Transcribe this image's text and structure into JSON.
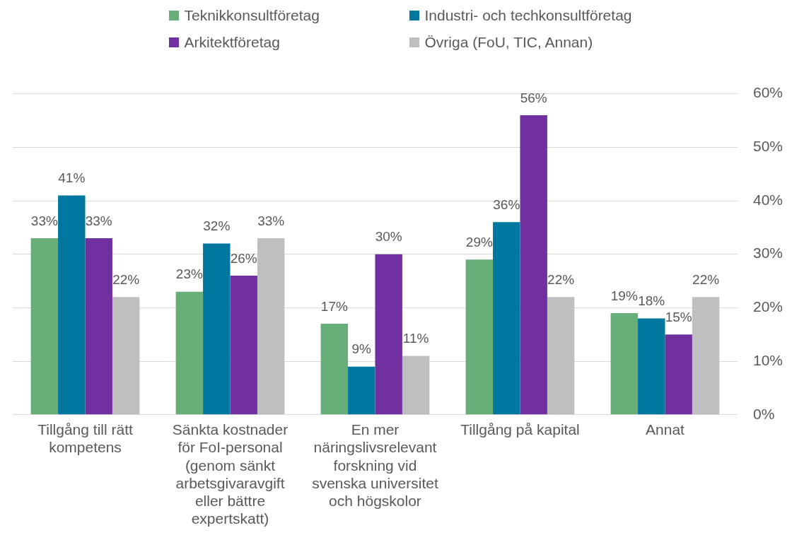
{
  "chart_data": {
    "type": "bar",
    "categories": [
      "Tillgång till rätt kompetens",
      "Sänkta kostnader för FoI-personal (genom sänkt arbetsgivaravgift eller bättre expertskatt)",
      "En mer näringslivsrelevant forskning vid svenska universitet och högskolor",
      "Tillgång på kapital",
      "Annat"
    ],
    "series": [
      {
        "name": "Teknikkonsultföretag",
        "color": "#68ae78",
        "values": [
          33,
          23,
          17,
          29,
          19
        ],
        "value_labels": [
          "33%",
          "23%",
          "17%",
          "29%",
          "19%"
        ]
      },
      {
        "name": "Industri- och techkonsultföretag",
        "color": "#00779e",
        "values": [
          41,
          32,
          9,
          36,
          18
        ],
        "value_labels": [
          "41%",
          "32%",
          "9%",
          "36%",
          "18%"
        ]
      },
      {
        "name": "Arkitektföretag",
        "color": "#7030a0",
        "values": [
          33,
          26,
          30,
          56,
          15
        ],
        "value_labels": [
          "33%",
          "26%",
          "30%",
          "56%",
          "15%"
        ]
      },
      {
        "name": "Övriga (FoU, TIC, Annan)",
        "color": "#bfbfbf",
        "values": [
          22,
          33,
          11,
          22,
          22
        ],
        "value_labels": [
          "22%",
          "33%",
          "11%",
          "22%",
          "22%"
        ]
      }
    ],
    "ylim": [
      0,
      60
    ],
    "yticks": [
      {
        "value": 0,
        "label": "0%"
      },
      {
        "value": 10,
        "label": "10%"
      },
      {
        "value": 20,
        "label": "20%"
      },
      {
        "value": 30,
        "label": "30%"
      },
      {
        "value": 40,
        "label": "40%"
      },
      {
        "value": 50,
        "label": "50%"
      },
      {
        "value": 60,
        "label": "60%"
      }
    ],
    "grid": "y",
    "legend": "top"
  }
}
